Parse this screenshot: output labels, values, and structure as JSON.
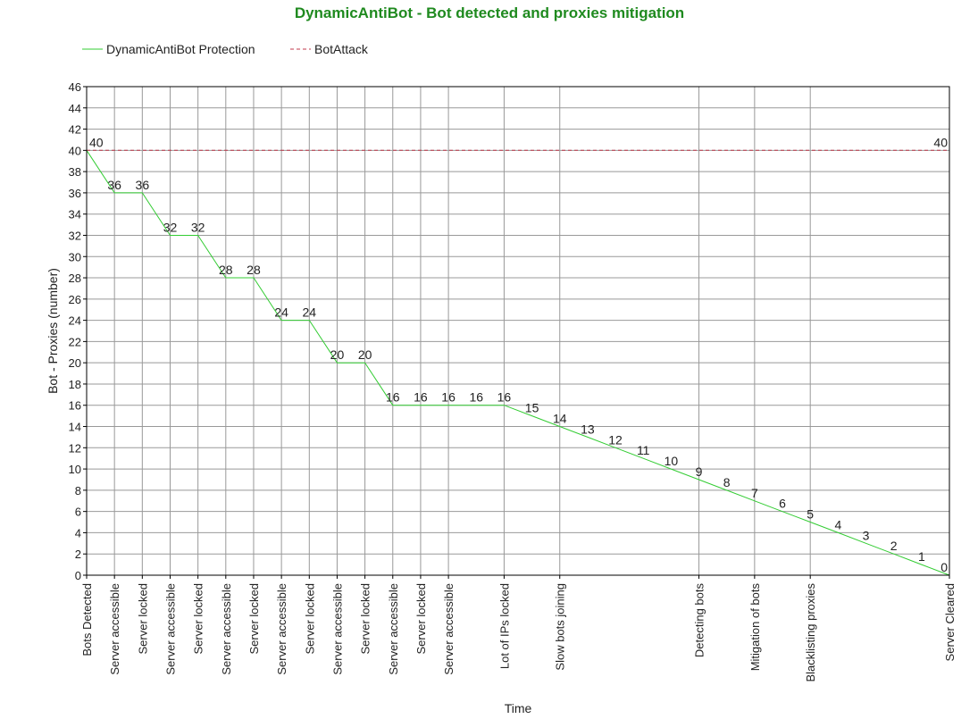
{
  "chart_data": {
    "type": "line",
    "title": "DynamicAntiBot - Bot detected and proxies mitigation",
    "xlabel": "Time",
    "ylabel": "Bot - Proxies (number)",
    "ylim": [
      0,
      46
    ],
    "ystep": 2,
    "xmax": 31,
    "grid": true,
    "legend_position": "top-left",
    "colors": {
      "protection": "#33cc33",
      "attack": "#c0394b",
      "title": "#1f8a1f",
      "grid": "#999999"
    },
    "x_ticks": [
      {
        "x": 0,
        "label": "Bots Detected"
      },
      {
        "x": 1,
        "label": "Server accessible"
      },
      {
        "x": 2,
        "label": "Server locked"
      },
      {
        "x": 3,
        "label": "Server accessible"
      },
      {
        "x": 4,
        "label": "Server locked"
      },
      {
        "x": 5,
        "label": "Server accessible"
      },
      {
        "x": 6,
        "label": "Server locked"
      },
      {
        "x": 7,
        "label": "Server accessible"
      },
      {
        "x": 8,
        "label": "Server locked"
      },
      {
        "x": 9,
        "label": "Server accessible"
      },
      {
        "x": 10,
        "label": "Server locked"
      },
      {
        "x": 11,
        "label": "Server accessible"
      },
      {
        "x": 12,
        "label": "Server locked"
      },
      {
        "x": 13,
        "label": "Server accessible"
      },
      {
        "x": 15,
        "label": "Lot of IPs locked"
      },
      {
        "x": 17,
        "label": "Slow bots joining"
      },
      {
        "x": 22,
        "label": "Detecting bots"
      },
      {
        "x": 24,
        "label": "Mitigation of bots"
      },
      {
        "x": 26,
        "label": "Blacklisting proxies"
      },
      {
        "x": 31,
        "label": "Server Cleared"
      }
    ],
    "series": [
      {
        "name": "DynamicAntiBot Protection",
        "style": "solid",
        "x": [
          0,
          1,
          2,
          3,
          4,
          5,
          6,
          7,
          8,
          9,
          10,
          11,
          12,
          13,
          14,
          15,
          16,
          17,
          18,
          19,
          20,
          21,
          22,
          23,
          24,
          25,
          26,
          27,
          28,
          29,
          30,
          31
        ],
        "values": [
          40,
          36,
          36,
          32,
          32,
          28,
          28,
          24,
          24,
          20,
          20,
          16,
          16,
          16,
          16,
          16,
          15,
          14,
          13,
          12,
          11,
          10,
          9,
          8,
          7,
          6,
          5,
          4,
          3,
          2,
          1,
          0
        ]
      },
      {
        "name": "BotAttack",
        "style": "dashed",
        "x": [
          0,
          31
        ],
        "values": [
          40,
          40
        ]
      }
    ]
  }
}
